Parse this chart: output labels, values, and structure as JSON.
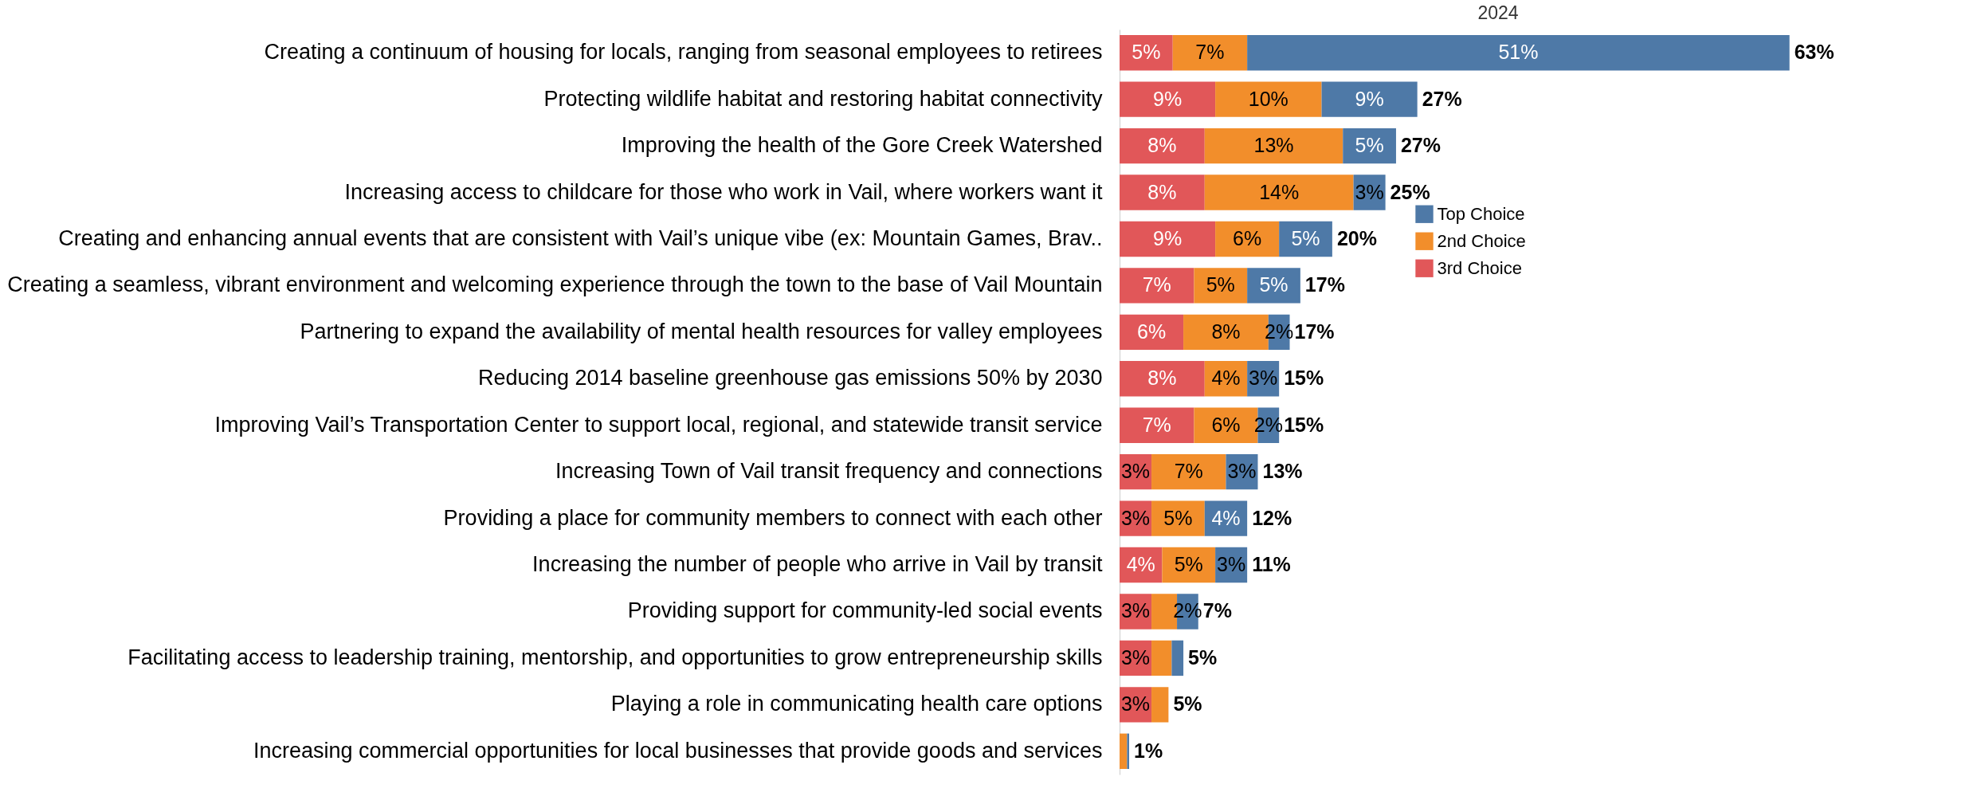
{
  "chart_data": {
    "type": "bar",
    "orientation": "horizontal",
    "stacked": true,
    "title": "2024",
    "legend": "right",
    "categories": [
      "Creating a continuum of housing for locals, ranging from seasonal employees to retirees",
      "Protecting wildlife habitat and restoring habitat connectivity",
      "Improving the health of the Gore Creek Watershed",
      "Increasing access to childcare for those who work in Vail, where workers want it",
      "Creating and enhancing annual events that are consistent with Vail’s unique vibe (ex: Mountain Games, Brav..",
      "Creating a seamless, vibrant environment and welcoming experience through the town to the base of Vail Mountain",
      "Partnering to expand the availability of mental health resources for valley employees",
      "Reducing 2014 baseline greenhouse gas emissions 50% by 2030",
      "Improving Vail’s Transportation Center to support local, regional, and statewide transit service",
      "Increasing Town of Vail transit frequency and connections",
      "Providing a place for community members to connect with each other",
      "Increasing the number of people who arrive in Vail by transit",
      "Providing support for community-led social events",
      "Facilitating access to leadership training, mentorship, and opportunities to grow entrepreneurship skills",
      "Playing a role in communicating health care options",
      "Increasing commercial opportunities for local businesses that provide goods and services"
    ],
    "series": [
      {
        "name": "3rd Choice",
        "color": "#e15759",
        "values": [
          5,
          9,
          8,
          8,
          9,
          7,
          6,
          8,
          7,
          3,
          3,
          4,
          3,
          3,
          3,
          null
        ],
        "value_labels": [
          "5%",
          "9%",
          "8%",
          "8%",
          "9%",
          "7%",
          "6%",
          "8%",
          "7%",
          "3%",
          "3%",
          "4%",
          "3%",
          "3%",
          "3%",
          null
        ]
      },
      {
        "name": "2nd Choice",
        "color": "#f28e2b",
        "values": [
          7,
          10,
          13,
          14,
          6,
          5,
          8,
          4,
          6,
          7,
          5,
          5,
          2.4,
          1.9,
          1.6,
          0.7
        ],
        "value_labels": [
          "7%",
          "10%",
          "13%",
          "14%",
          "6%",
          "5%",
          "8%",
          "4%",
          "6%",
          "7%",
          "5%",
          "5%",
          null,
          null,
          null,
          null
        ]
      },
      {
        "name": "Top Choice",
        "color": "#4e79a7",
        "values": [
          51,
          9,
          5,
          3,
          5,
          5,
          2,
          3,
          2,
          3,
          4,
          3,
          2,
          1.1,
          null,
          0.2
        ],
        "value_labels": [
          "51%",
          "9%",
          "5%",
          "3%",
          "5%",
          "5%",
          "2%",
          "3%",
          "2%",
          "3%",
          "4%",
          "3%",
          "2%",
          null,
          null,
          null
        ]
      }
    ],
    "totals": [
      "63%",
      "27%",
      "27%",
      "25%",
      "20%",
      "17%",
      "17%",
      "15%",
      "15%",
      "13%",
      "12%",
      "11%",
      "7%",
      "5%",
      "5%",
      "1%"
    ]
  }
}
